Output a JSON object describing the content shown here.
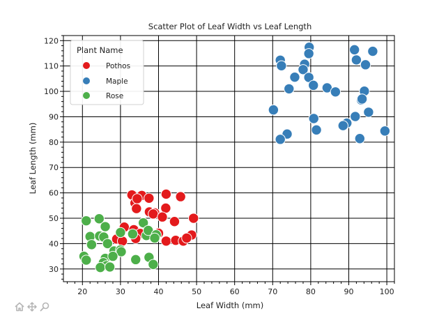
{
  "chart_data": {
    "type": "scatter",
    "title": "Scatter Plot of Leaf Width vs Leaf Length",
    "xlabel": "Leaf Width (mm)",
    "ylabel": "Leaf Length (mm)",
    "xlim": [
      15,
      102
    ],
    "ylim": [
      25,
      122
    ],
    "xticks": [
      20,
      30,
      40,
      50,
      60,
      70,
      80,
      90,
      100
    ],
    "yticks": [
      30,
      40,
      50,
      60,
      70,
      80,
      90,
      100,
      110,
      120
    ],
    "grid": true,
    "legend": {
      "title": "Plant Name",
      "position": "top-left"
    },
    "series": [
      {
        "name": "Pothos",
        "color": "#e31a1c",
        "points": [
          [
            33.0,
            59.2
          ],
          [
            35.6,
            59.0
          ],
          [
            33.8,
            56.0
          ],
          [
            34.4,
            57.7
          ],
          [
            37.5,
            57.9
          ],
          [
            42.0,
            59.5
          ],
          [
            45.8,
            58.5
          ],
          [
            41.9,
            54.0
          ],
          [
            34.2,
            53.8
          ],
          [
            37.6,
            52.5
          ],
          [
            39.0,
            52.1
          ],
          [
            38.6,
            51.7
          ],
          [
            49.2,
            50.0
          ],
          [
            41.0,
            50.5
          ],
          [
            44.2,
            48.7
          ],
          [
            31.0,
            46.5
          ],
          [
            33.5,
            45.5
          ],
          [
            35.2,
            44.0
          ],
          [
            40.0,
            44.1
          ],
          [
            34.0,
            42.0
          ],
          [
            29.0,
            41.8
          ],
          [
            30.5,
            41.0
          ],
          [
            42.0,
            41.0
          ],
          [
            44.5,
            41.3
          ],
          [
            46.5,
            41.0
          ],
          [
            48.7,
            43.4
          ],
          [
            47.4,
            42.2
          ]
        ]
      },
      {
        "name": "Maple",
        "color": "#377eb8",
        "points": [
          [
            79.6,
            117.4
          ],
          [
            91.5,
            116.4
          ],
          [
            96.3,
            115.8
          ],
          [
            72.0,
            112.3
          ],
          [
            79.5,
            114.9
          ],
          [
            92.0,
            112.4
          ],
          [
            78.4,
            110.7
          ],
          [
            94.4,
            110.5
          ],
          [
            78.0,
            108.6
          ],
          [
            72.3,
            110.1
          ],
          [
            75.8,
            105.6
          ],
          [
            79.5,
            105.5
          ],
          [
            80.7,
            102.4
          ],
          [
            74.3,
            101.0
          ],
          [
            84.3,
            101.4
          ],
          [
            86.5,
            99.8
          ],
          [
            94.1,
            100.1
          ],
          [
            93.3,
            96.6
          ],
          [
            93.5,
            97.0
          ],
          [
            70.2,
            92.7
          ],
          [
            95.2,
            91.8
          ],
          [
            80.8,
            89.3
          ],
          [
            91.7,
            90.1
          ],
          [
            89.5,
            87.5
          ],
          [
            88.5,
            86.5
          ],
          [
            99.5,
            84.4
          ],
          [
            81.5,
            84.8
          ],
          [
            73.8,
            83.2
          ],
          [
            92.9,
            81.4
          ],
          [
            72.0,
            81.1
          ]
        ]
      },
      {
        "name": "Rose",
        "color": "#4daf4a",
        "points": [
          [
            21.0,
            49.0
          ],
          [
            24.4,
            49.8
          ],
          [
            26.0,
            46.7
          ],
          [
            22.0,
            42.8
          ],
          [
            24.5,
            43.0
          ],
          [
            25.6,
            42.6
          ],
          [
            22.4,
            39.6
          ],
          [
            26.6,
            40.0
          ],
          [
            30.0,
            44.4
          ],
          [
            33.2,
            43.8
          ],
          [
            36.0,
            48.2
          ],
          [
            36.8,
            43.2
          ],
          [
            37.3,
            45.2
          ],
          [
            39.4,
            43.5
          ],
          [
            39.0,
            42.2
          ],
          [
            28.3,
            37.1
          ],
          [
            30.0,
            37.5
          ],
          [
            30.2,
            36.8
          ],
          [
            26.0,
            34.2
          ],
          [
            28.0,
            35.0
          ],
          [
            20.4,
            35.0
          ],
          [
            21.0,
            33.5
          ],
          [
            25.5,
            32.5
          ],
          [
            26.3,
            31.3
          ],
          [
            24.7,
            30.6
          ],
          [
            27.2,
            30.8
          ],
          [
            37.5,
            34.6
          ],
          [
            34.0,
            33.7
          ],
          [
            38.6,
            31.8
          ]
        ]
      }
    ]
  },
  "toolbar": {
    "home_icon": "home-icon",
    "pan_icon": "pan-icon",
    "zoom_icon": "zoom-icon"
  }
}
